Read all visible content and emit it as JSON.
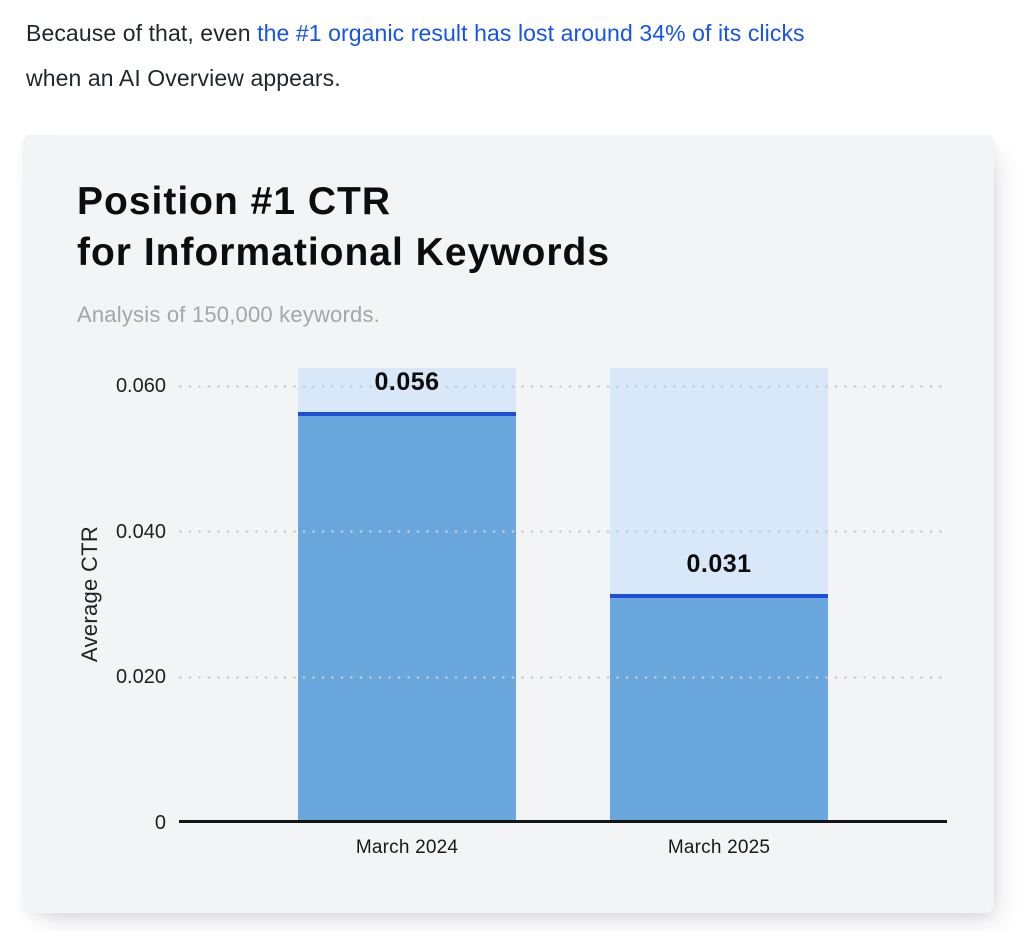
{
  "paragraph": {
    "prefix": "Because of that, even ",
    "link_text": "the #1 organic result has lost around 34% of its clicks",
    "suffix": "when an AI Overview appears."
  },
  "card": {
    "title_line1": "Position #1 CTR",
    "title_line2": "for Informational Keywords",
    "subtitle": "Analysis of 150,000 keywords."
  },
  "chart_data": {
    "type": "bar",
    "title": "Position #1 CTR for Informational Keywords",
    "subtitle": "Analysis of 150,000 keywords.",
    "categories": [
      "March 2024",
      "March 2025"
    ],
    "values": [
      0.056,
      0.031
    ],
    "value_labels": [
      "0.056",
      "0.031"
    ],
    "xlabel": "",
    "ylabel": "Average CTR",
    "ylim": [
      0,
      0.0625
    ],
    "yticks": [
      0,
      0.02,
      0.04,
      0.06
    ],
    "ytick_labels": [
      "0",
      "0.020",
      "0.040",
      "0.060"
    ],
    "grid": "horizontal-dotted",
    "legend": "none",
    "colors": {
      "bar_fill": "#69a7dd",
      "bar_track": "#d9e8f8",
      "bar_top_line": "#1e4fdb",
      "grid_dots": "#c6cad1",
      "axis_line": "#151515",
      "link_blue": "#1553f0",
      "card_background": "#f3f4f6"
    }
  }
}
